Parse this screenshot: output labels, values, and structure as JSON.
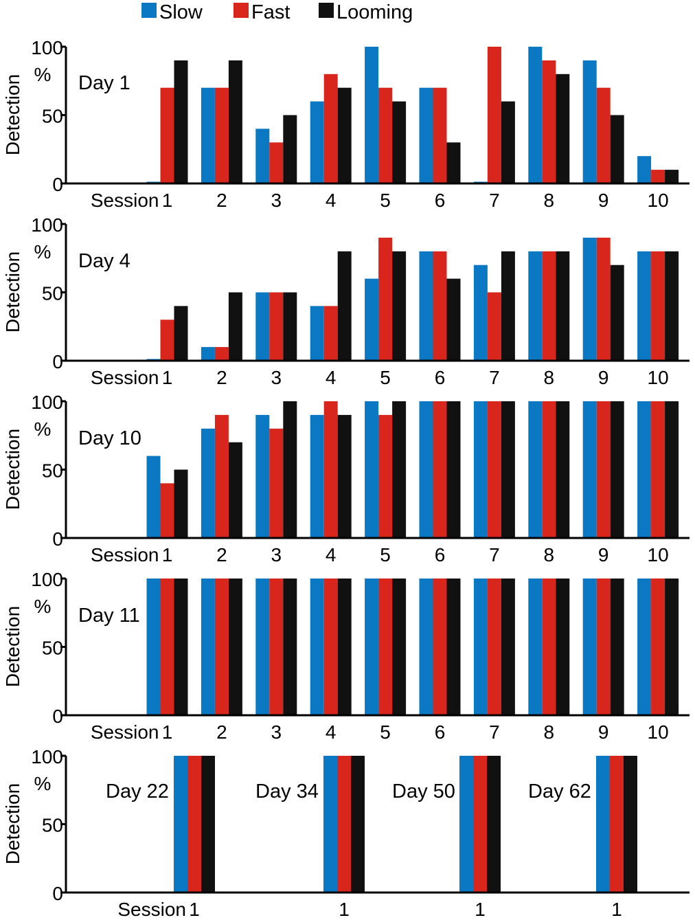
{
  "legend": {
    "entries": [
      {
        "name": "Slow",
        "color": "#0a78c2"
      },
      {
        "name": "Fast",
        "color": "#d9261c"
      },
      {
        "name": "Looming",
        "color": "#111111"
      }
    ]
  },
  "chart_data": [
    {
      "type": "bar",
      "panel_label": "Day 1",
      "ylabel": "Detection",
      "yunit": "%",
      "ylim": [
        0,
        100
      ],
      "yticks": [
        "0",
        "50",
        "100"
      ],
      "xlabel": "Session",
      "categories": [
        "1",
        "2",
        "3",
        "4",
        "5",
        "6",
        "7",
        "8",
        "9",
        "10"
      ],
      "series": [
        {
          "name": "Slow",
          "values": [
            0,
            70,
            40,
            60,
            100,
            70,
            0,
            100,
            90,
            20
          ]
        },
        {
          "name": "Fast",
          "values": [
            70,
            70,
            30,
            80,
            70,
            70,
            100,
            90,
            70,
            10
          ]
        },
        {
          "name": "Looming",
          "values": [
            90,
            90,
            50,
            70,
            60,
            30,
            60,
            80,
            50,
            10
          ]
        }
      ]
    },
    {
      "type": "bar",
      "panel_label": "Day 4",
      "ylabel": "Detection",
      "yunit": "%",
      "ylim": [
        0,
        100
      ],
      "yticks": [
        "0",
        "50",
        "100"
      ],
      "xlabel": "Session",
      "categories": [
        "1",
        "2",
        "3",
        "4",
        "5",
        "6",
        "7",
        "8",
        "9",
        "10"
      ],
      "series": [
        {
          "name": "Slow",
          "values": [
            0,
            10,
            50,
            40,
            60,
            80,
            70,
            80,
            90,
            80
          ]
        },
        {
          "name": "Fast",
          "values": [
            30,
            10,
            50,
            40,
            90,
            80,
            50,
            80,
            90,
            80
          ]
        },
        {
          "name": "Looming",
          "values": [
            40,
            50,
            50,
            80,
            80,
            60,
            80,
            80,
            70,
            80
          ]
        }
      ]
    },
    {
      "type": "bar",
      "panel_label": "Day 10",
      "ylabel": "Detection",
      "yunit": "%",
      "ylim": [
        0,
        100
      ],
      "yticks": [
        "0",
        "50",
        "100"
      ],
      "xlabel": "Session",
      "categories": [
        "1",
        "2",
        "3",
        "4",
        "5",
        "6",
        "7",
        "8",
        "9",
        "10"
      ],
      "series": [
        {
          "name": "Slow",
          "values": [
            60,
            80,
            90,
            90,
            100,
            100,
            100,
            100,
            100,
            100
          ]
        },
        {
          "name": "Fast",
          "values": [
            40,
            90,
            80,
            100,
            90,
            100,
            100,
            100,
            100,
            100
          ]
        },
        {
          "name": "Looming",
          "values": [
            50,
            70,
            100,
            90,
            100,
            100,
            100,
            100,
            100,
            100
          ]
        }
      ]
    },
    {
      "type": "bar",
      "panel_label": "Day 11",
      "ylabel": "Detection",
      "yunit": "%",
      "ylim": [
        0,
        100
      ],
      "yticks": [
        "0",
        "50",
        "100"
      ],
      "xlabel": "Session",
      "categories": [
        "1",
        "2",
        "3",
        "4",
        "5",
        "6",
        "7",
        "8",
        "9",
        "10"
      ],
      "series": [
        {
          "name": "Slow",
          "values": [
            100,
            100,
            100,
            100,
            100,
            100,
            100,
            100,
            100,
            100
          ]
        },
        {
          "name": "Fast",
          "values": [
            100,
            100,
            100,
            100,
            100,
            100,
            100,
            100,
            100,
            100
          ]
        },
        {
          "name": "Looming",
          "values": [
            100,
            100,
            100,
            100,
            100,
            100,
            100,
            100,
            100,
            100
          ]
        }
      ]
    },
    {
      "type": "bar",
      "ylabel": "Detection",
      "yunit": "%",
      "ylim": [
        0,
        100
      ],
      "yticks": [
        "0",
        "50",
        "100"
      ],
      "xlabel": "Session",
      "categories": [
        "1",
        "1",
        "1",
        "1"
      ],
      "group_labels": [
        "Day 22",
        "Day 34",
        "Day 50",
        "Day 62"
      ],
      "series": [
        {
          "name": "Slow",
          "values": [
            100,
            100,
            100,
            100
          ]
        },
        {
          "name": "Fast",
          "values": [
            100,
            100,
            100,
            100
          ]
        },
        {
          "name": "Looming",
          "values": [
            100,
            100,
            100,
            100
          ]
        }
      ]
    }
  ]
}
